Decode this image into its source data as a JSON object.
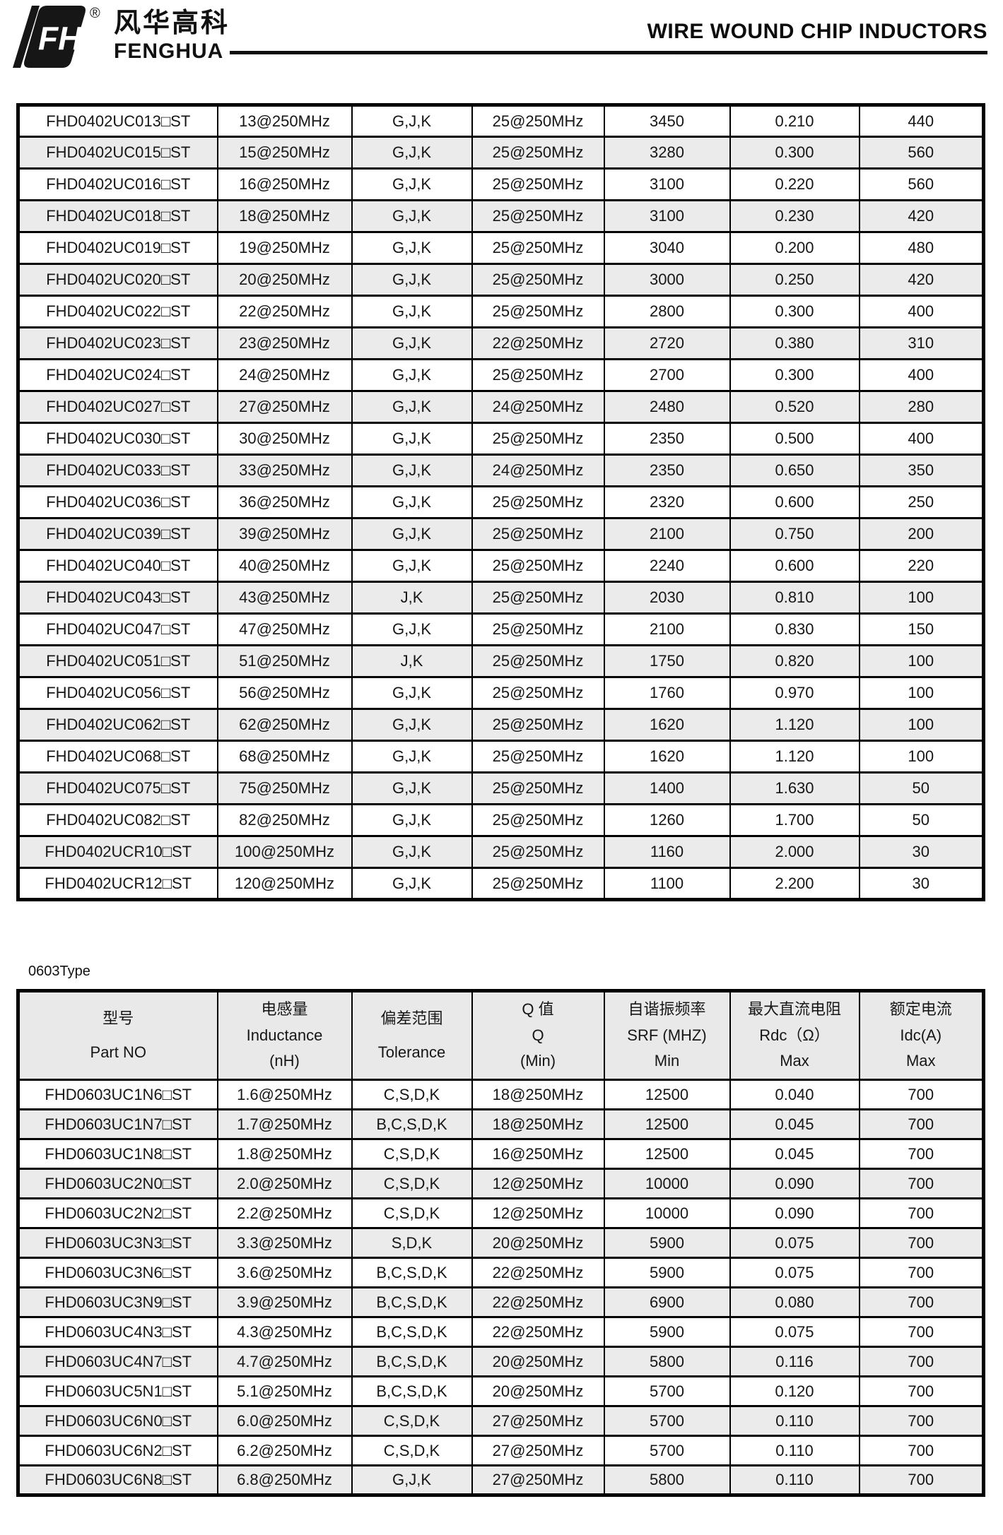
{
  "header": {
    "company_cn": "风华高科",
    "company_en": "FENGHUA",
    "registered_mark": "®",
    "logo_monogram": "FH",
    "title": "WIRE WOUND CHIP INDUCTORS"
  },
  "table_0402": {
    "rows": [
      [
        "FHD0402UC013□ST",
        "13@250MHz",
        "G,J,K",
        "25@250MHz",
        "3450",
        "0.210",
        "440"
      ],
      [
        "FHD0402UC015□ST",
        "15@250MHz",
        "G,J,K",
        "25@250MHz",
        "3280",
        "0.300",
        "560"
      ],
      [
        "FHD0402UC016□ST",
        "16@250MHz",
        "G,J,K",
        "25@250MHz",
        "3100",
        "0.220",
        "560"
      ],
      [
        "FHD0402UC018□ST",
        "18@250MHz",
        "G,J,K",
        "25@250MHz",
        "3100",
        "0.230",
        "420"
      ],
      [
        "FHD0402UC019□ST",
        "19@250MHz",
        "G,J,K",
        "25@250MHz",
        "3040",
        "0.200",
        "480"
      ],
      [
        "FHD0402UC020□ST",
        "20@250MHz",
        "G,J,K",
        "25@250MHz",
        "3000",
        "0.250",
        "420"
      ],
      [
        "FHD0402UC022□ST",
        "22@250MHz",
        "G,J,K",
        "25@250MHz",
        "2800",
        "0.300",
        "400"
      ],
      [
        "FHD0402UC023□ST",
        "23@250MHz",
        "G,J,K",
        "22@250MHz",
        "2720",
        "0.380",
        "310"
      ],
      [
        "FHD0402UC024□ST",
        "24@250MHz",
        "G,J,K",
        "25@250MHz",
        "2700",
        "0.300",
        "400"
      ],
      [
        "FHD0402UC027□ST",
        "27@250MHz",
        "G,J,K",
        "24@250MHz",
        "2480",
        "0.520",
        "280"
      ],
      [
        "FHD0402UC030□ST",
        "30@250MHz",
        "G,J,K",
        "25@250MHz",
        "2350",
        "0.500",
        "400"
      ],
      [
        "FHD0402UC033□ST",
        "33@250MHz",
        "G,J,K",
        "24@250MHz",
        "2350",
        "0.650",
        "350"
      ],
      [
        "FHD0402UC036□ST",
        "36@250MHz",
        "G,J,K",
        "25@250MHz",
        "2320",
        "0.600",
        "250"
      ],
      [
        "FHD0402UC039□ST",
        "39@250MHz",
        "G,J,K",
        "25@250MHz",
        "2100",
        "0.750",
        "200"
      ],
      [
        "FHD0402UC040□ST",
        "40@250MHz",
        "G,J,K",
        "25@250MHz",
        "2240",
        "0.600",
        "220"
      ],
      [
        "FHD0402UC043□ST",
        "43@250MHz",
        "J,K",
        "25@250MHz",
        "2030",
        "0.810",
        "100"
      ],
      [
        "FHD0402UC047□ST",
        "47@250MHz",
        "G,J,K",
        "25@250MHz",
        "2100",
        "0.830",
        "150"
      ],
      [
        "FHD0402UC051□ST",
        "51@250MHz",
        "J,K",
        "25@250MHz",
        "1750",
        "0.820",
        "100"
      ],
      [
        "FHD0402UC056□ST",
        "56@250MHz",
        "G,J,K",
        "25@250MHz",
        "1760",
        "0.970",
        "100"
      ],
      [
        "FHD0402UC062□ST",
        "62@250MHz",
        "G,J,K",
        "25@250MHz",
        "1620",
        "1.120",
        "100"
      ],
      [
        "FHD0402UC068□ST",
        "68@250MHz",
        "G,J,K",
        "25@250MHz",
        "1620",
        "1.120",
        "100"
      ],
      [
        "FHD0402UC075□ST",
        "75@250MHz",
        "G,J,K",
        "25@250MHz",
        "1400",
        "1.630",
        "50"
      ],
      [
        "FHD0402UC082□ST",
        "82@250MHz",
        "G,J,K",
        "25@250MHz",
        "1260",
        "1.700",
        "50"
      ],
      [
        "FHD0402UCR10□ST",
        "100@250MHz",
        "G,J,K",
        "25@250MHz",
        "1160",
        "2.000",
        "30"
      ],
      [
        "FHD0402UCR12□ST",
        "120@250MHz",
        "G,J,K",
        "25@250MHz",
        "1100",
        "2.200",
        "30"
      ]
    ]
  },
  "section_0603": {
    "label": "0603Type",
    "header_columns": [
      [
        "型号",
        "Part NO"
      ],
      [
        "电感量",
        "Inductance",
        "(nH)"
      ],
      [
        "偏差范围",
        "Tolerance"
      ],
      [
        "Q 值",
        "Q",
        "(Min)"
      ],
      [
        "自谐振频率",
        "SRF (MHZ)",
        "Min"
      ],
      [
        "最大直流电阻",
        "Rdc（Ω）",
        "Max"
      ],
      [
        "额定电流",
        "Idc(A)",
        "Max"
      ]
    ],
    "rows": [
      [
        "FHD0603UC1N6□ST",
        "1.6@250MHz",
        "C,S,D,K",
        "18@250MHz",
        "12500",
        "0.040",
        "700"
      ],
      [
        "FHD0603UC1N7□ST",
        "1.7@250MHz",
        "B,C,S,D,K",
        "18@250MHz",
        "12500",
        "0.045",
        "700"
      ],
      [
        "FHD0603UC1N8□ST",
        "1.8@250MHz",
        "C,S,D,K",
        "16@250MHz",
        "12500",
        "0.045",
        "700"
      ],
      [
        "FHD0603UC2N0□ST",
        "2.0@250MHz",
        "C,S,D,K",
        "12@250MHz",
        "10000",
        "0.090",
        "700"
      ],
      [
        "FHD0603UC2N2□ST",
        "2.2@250MHz",
        "C,S,D,K",
        "12@250MHz",
        "10000",
        "0.090",
        "700"
      ],
      [
        "FHD0603UC3N3□ST",
        "3.3@250MHz",
        "S,D,K",
        "20@250MHz",
        "5900",
        "0.075",
        "700"
      ],
      [
        "FHD0603UC3N6□ST",
        "3.6@250MHz",
        "B,C,S,D,K",
        "22@250MHz",
        "5900",
        "0.075",
        "700"
      ],
      [
        "FHD0603UC3N9□ST",
        "3.9@250MHz",
        "B,C,S,D,K",
        "22@250MHz",
        "6900",
        "0.080",
        "700"
      ],
      [
        "FHD0603UC4N3□ST",
        "4.3@250MHz",
        "B,C,S,D,K",
        "22@250MHz",
        "5900",
        "0.075",
        "700"
      ],
      [
        "FHD0603UC4N7□ST",
        "4.7@250MHz",
        "B,C,S,D,K",
        "20@250MHz",
        "5800",
        "0.116",
        "700"
      ],
      [
        "FHD0603UC5N1□ST",
        "5.1@250MHz",
        "B,C,S,D,K",
        "20@250MHz",
        "5700",
        "0.120",
        "700"
      ],
      [
        "FHD0603UC6N0□ST",
        "6.0@250MHz",
        "C,S,D,K",
        "27@250MHz",
        "5700",
        "0.110",
        "700"
      ],
      [
        "FHD0603UC6N2□ST",
        "6.2@250MHz",
        "C,S,D,K",
        "27@250MHz",
        "5700",
        "0.110",
        "700"
      ],
      [
        "FHD0603UC6N8□ST",
        "6.8@250MHz",
        "G,J,K",
        "27@250MHz",
        "5800",
        "0.110",
        "700"
      ]
    ]
  },
  "colors": {
    "stripe_gray": "#ebebeb",
    "header_gray": "#e9e9e9",
    "border_black": "#000000"
  }
}
